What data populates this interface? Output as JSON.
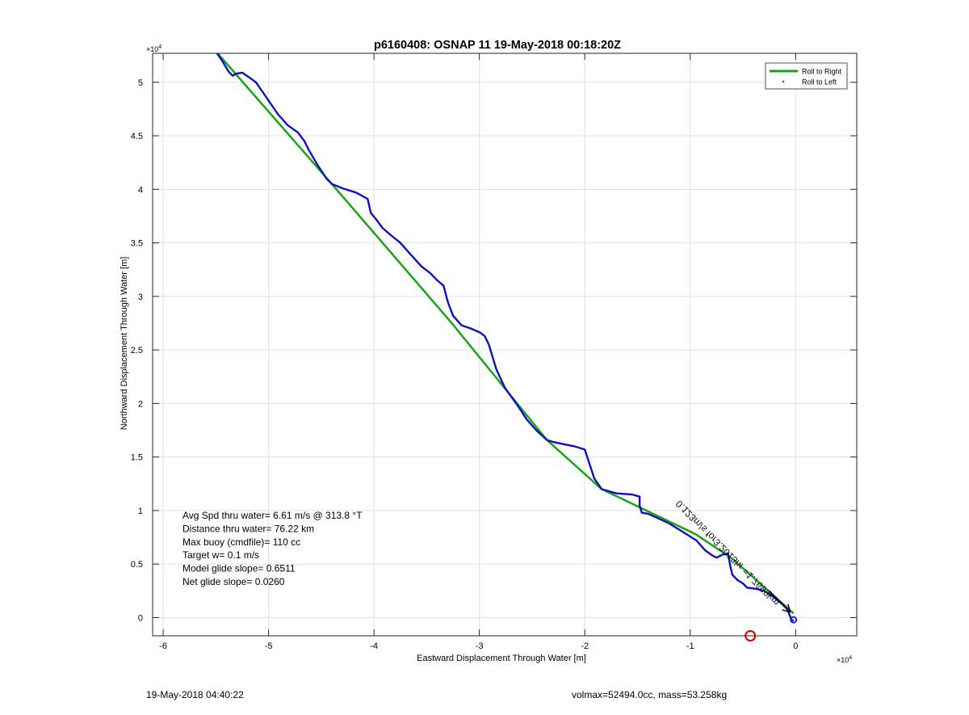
{
  "chart_data": {
    "type": "line",
    "title": "p6160408: OSNAP 11 19-May-2018 00:18:20Z",
    "xlabel": "Eastward Displacement Through Water [m]",
    "ylabel": "Northward Displacement Through Water [m]",
    "x_exponent": "×10",
    "x_exponent_power": "4",
    "y_exponent": "×10",
    "y_exponent_power": "4",
    "xlim": [
      -6.1,
      0.58
    ],
    "ylim": [
      -0.17,
      5.27
    ],
    "xticks": [
      -6,
      -5,
      -4,
      -3,
      -2,
      -1,
      0
    ],
    "xtick_labels": [
      "-6",
      "-5",
      "-4",
      "-3",
      "-2",
      "-1",
      "0"
    ],
    "yticks": [
      0,
      0.5,
      1,
      1.5,
      2,
      2.5,
      3,
      3.5,
      4,
      4.5,
      5
    ],
    "ytick_labels": [
      "0",
      "0.5",
      "1",
      "1.5",
      "2",
      "2.5",
      "3",
      "3.5",
      "4",
      "4.5",
      "5"
    ],
    "grid": true,
    "legend_position": "top-right",
    "series": [
      {
        "name": "Roll to Right",
        "color": "#1aa31a",
        "x": [
          -5.51,
          -4.4,
          -3.27,
          -2.36,
          -1.84,
          -0.95,
          -0.6,
          -0.02
        ],
        "y": [
          5.3,
          4.05,
          2.76,
          1.66,
          1.2,
          0.78,
          0.55,
          0.04
        ]
      },
      {
        "name": "Roll to Left",
        "color": "#dd1111",
        "x": [],
        "y": []
      }
    ],
    "track": {
      "color": "#1111bb",
      "x": [
        -5.51,
        -5.44,
        -5.38,
        -5.34,
        -5.31,
        -5.25,
        -5.19,
        -5.12,
        -5.05,
        -4.98,
        -4.91,
        -4.82,
        -4.72,
        -4.66,
        -4.62,
        -4.53,
        -4.45,
        -4.4,
        -4.3,
        -4.17,
        -4.06,
        -4.03,
        -3.98,
        -3.92,
        -3.85,
        -3.75,
        -3.66,
        -3.55,
        -3.47,
        -3.4,
        -3.34,
        -3.3,
        -3.25,
        -3.17,
        -3.08,
        -2.99,
        -2.95,
        -2.91,
        -2.84,
        -2.76,
        -2.63,
        -2.55,
        -2.45,
        -2.36,
        -2.3,
        -2.2,
        -2.1,
        -2.0,
        -1.96,
        -1.91,
        -1.84,
        -1.7,
        -1.55,
        -1.48,
        -1.48,
        -1.46,
        -1.4,
        -1.31,
        -1.2,
        -1.07,
        -0.94,
        -0.86,
        -0.79,
        -0.75,
        -0.69,
        -0.64,
        -0.62,
        -0.6,
        -0.55,
        -0.5,
        -0.46,
        -0.38,
        -0.3,
        -0.22,
        -0.12,
        -0.08,
        -0.06,
        -0.04,
        -0.02
      ],
      "y": [
        5.3,
        5.2,
        5.1,
        5.06,
        5.08,
        5.09,
        5.05,
        5.0,
        4.9,
        4.8,
        4.7,
        4.6,
        4.53,
        4.45,
        4.37,
        4.22,
        4.1,
        4.05,
        4.01,
        3.97,
        3.91,
        3.78,
        3.72,
        3.64,
        3.58,
        3.5,
        3.4,
        3.28,
        3.22,
        3.15,
        3.1,
        2.95,
        2.82,
        2.73,
        2.7,
        2.66,
        2.63,
        2.55,
        2.32,
        2.15,
        1.97,
        1.85,
        1.74,
        1.66,
        1.64,
        1.62,
        1.6,
        1.57,
        1.45,
        1.3,
        1.2,
        1.16,
        1.15,
        1.13,
        1.05,
        0.98,
        0.97,
        0.93,
        0.88,
        0.8,
        0.72,
        0.63,
        0.58,
        0.56,
        0.59,
        0.6,
        0.48,
        0.4,
        0.35,
        0.32,
        0.28,
        0.27,
        0.25,
        0.2,
        0.12,
        0.08,
        0.03,
        -0.02,
        -0.03
      ]
    },
    "current_arrow": {
      "color": "#000000",
      "x0": -0.05,
      "y0": 0.05,
      "x1": -1.1,
      "y1": 1.1,
      "text": "0.123m/s for3.2013hr =1.7699km"
    },
    "markers": [
      {
        "type": "circle",
        "color": "#cc0000",
        "x": -0.43,
        "y": -0.17
      },
      {
        "type": "circle",
        "color": "#2222cc",
        "x": -0.02,
        "y": -0.02
      }
    ],
    "annotations": [
      "Avg Spd thru water=  6.61 m/s @ 313.8 °T",
      "Distance thru water= 76.22 km",
      "Max buoy (cmdfile)= 110 cc",
      "Target w= 0.1 m/s",
      "Model glide slope= 0.6511",
      "Net glide slope= 0.0260"
    ]
  },
  "footer": {
    "timestamp": "19-May-2018 04:40:22",
    "summary": "volmax=52494.0cc, mass=53.258kg"
  }
}
